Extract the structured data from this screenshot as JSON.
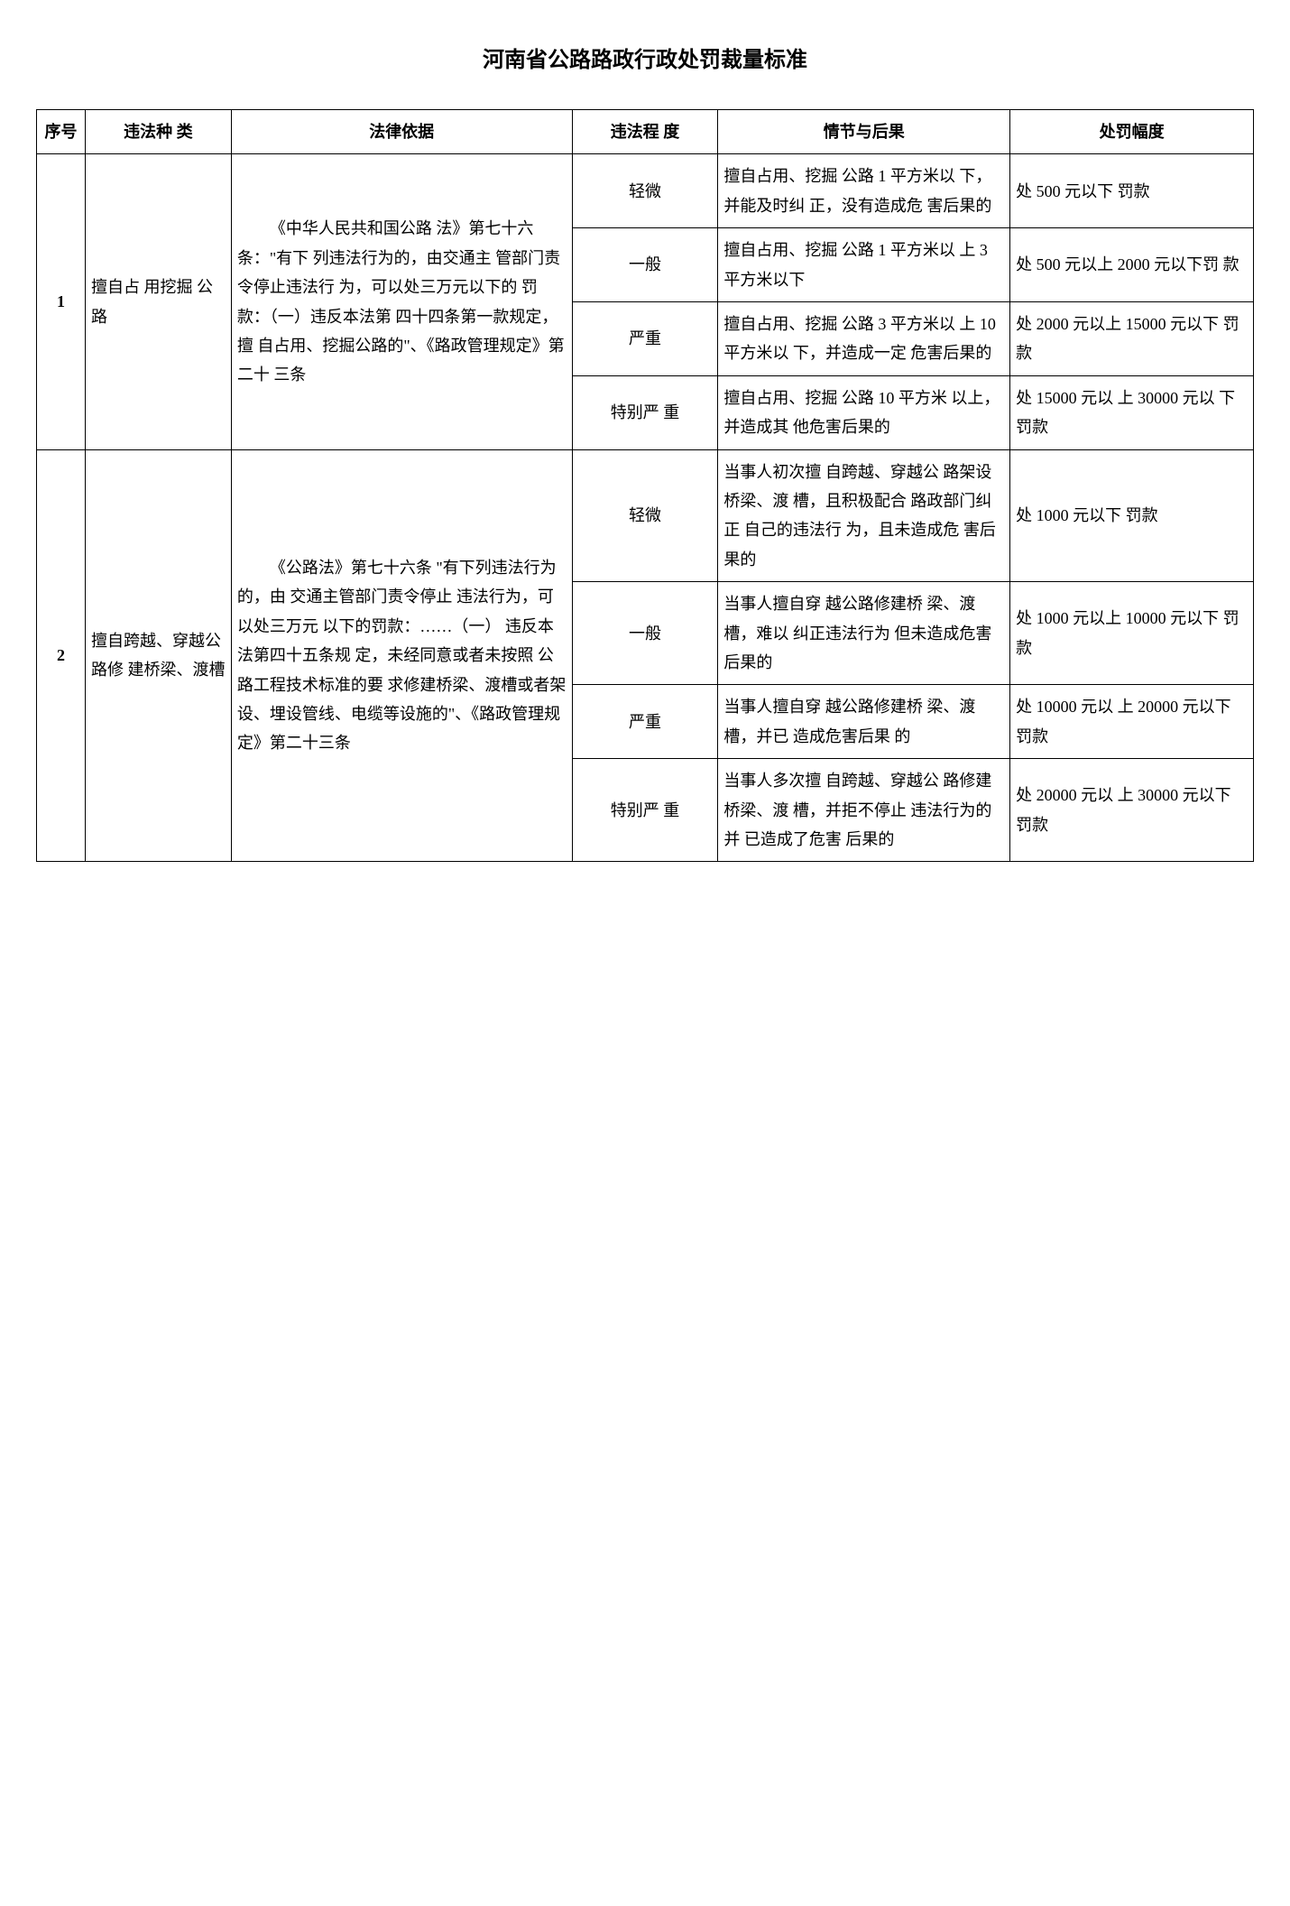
{
  "title": "河南省公路路政行政处罚裁量标准",
  "headers": {
    "seq": "序号",
    "type": "违法种 类",
    "basis": "法律依据",
    "degree": "违法程 度",
    "circumstance": "情节与后果",
    "penalty": "处罚幅度"
  },
  "rows": [
    {
      "seq": "1",
      "type": "擅自占 用挖掘 公路",
      "basis": "《中华人民共和国公路 法》第七十六条：\"有下 列违法行为的，由交通主 管部门责令停止违法行 为，可以处三万元以下的 罚款：（一）违反本法第 四十四条第一款规定，擅 自占用、挖掘公路的\"、《路政管理规定》第二十 三条",
      "levels": [
        {
          "degree": "轻微",
          "circumstance": "擅自占用、挖掘 公路 1 平方米以 下，并能及时纠 正，没有造成危 害后果的",
          "penalty": "处 500 元以下 罚款"
        },
        {
          "degree": "一般",
          "circumstance": "擅自占用、挖掘 公路 1 平方米以 上 3 平方米以下",
          "penalty": "处 500 元以上 2000 元以下罚 款"
        },
        {
          "degree": "严重",
          "circumstance": "擅自占用、挖掘 公路 3 平方米以 上 10 平方米以 下，并造成一定 危害后果的",
          "penalty": "处 2000 元以上 15000 元以下 罚款"
        },
        {
          "degree": "特别严 重",
          "circumstance": "擅自占用、挖掘 公路 10 平方米 以上，并造成其 他危害后果的",
          "penalty": "处 15000 元以 上 30000 元以 下罚款"
        }
      ]
    },
    {
      "seq": "2",
      "type": "擅自跨越、穿越公路修 建桥梁、渡槽",
      "basis": "《公路法》第七十六条 \"有下列违法行为的，由 交通主管部门责令停止 违法行为，可以处三万元 以下的罚款：……（一） 违反本法第四十五条规 定，未经同意或者未按照 公路工程技术标准的要 求修建桥梁、渡槽或者架 设、埋设管线、电缆等设施的\"、《路政管理规定》第二十三条",
      "levels": [
        {
          "degree": "轻微",
          "circumstance": "当事人初次擅 自跨越、穿越公 路架设桥梁、渡 槽，且积极配合 路政部门纠正 自己的违法行 为，且未造成危 害后果的",
          "penalty": "处 1000 元以下 罚款"
        },
        {
          "degree": "一般",
          "circumstance": "当事人擅自穿 越公路修建桥 梁、渡槽，难以 纠正违法行为 但未造成危害 后果的",
          "penalty": "处 1000 元以上 10000 元以下 罚款"
        },
        {
          "degree": "严重",
          "circumstance": "当事人擅自穿 越公路修建桥 梁、渡槽，并已 造成危害后果 的",
          "penalty": "处 10000 元以 上 20000 元以下 罚款"
        },
        {
          "degree": "特别严 重",
          "circumstance": "当事人多次擅 自跨越、穿越公 路修建桥梁、渡 槽，并拒不停止 违法行为的并 已造成了危害 后果的",
          "penalty": "处 20000 元以 上 30000 元以下 罚款"
        }
      ]
    }
  ]
}
